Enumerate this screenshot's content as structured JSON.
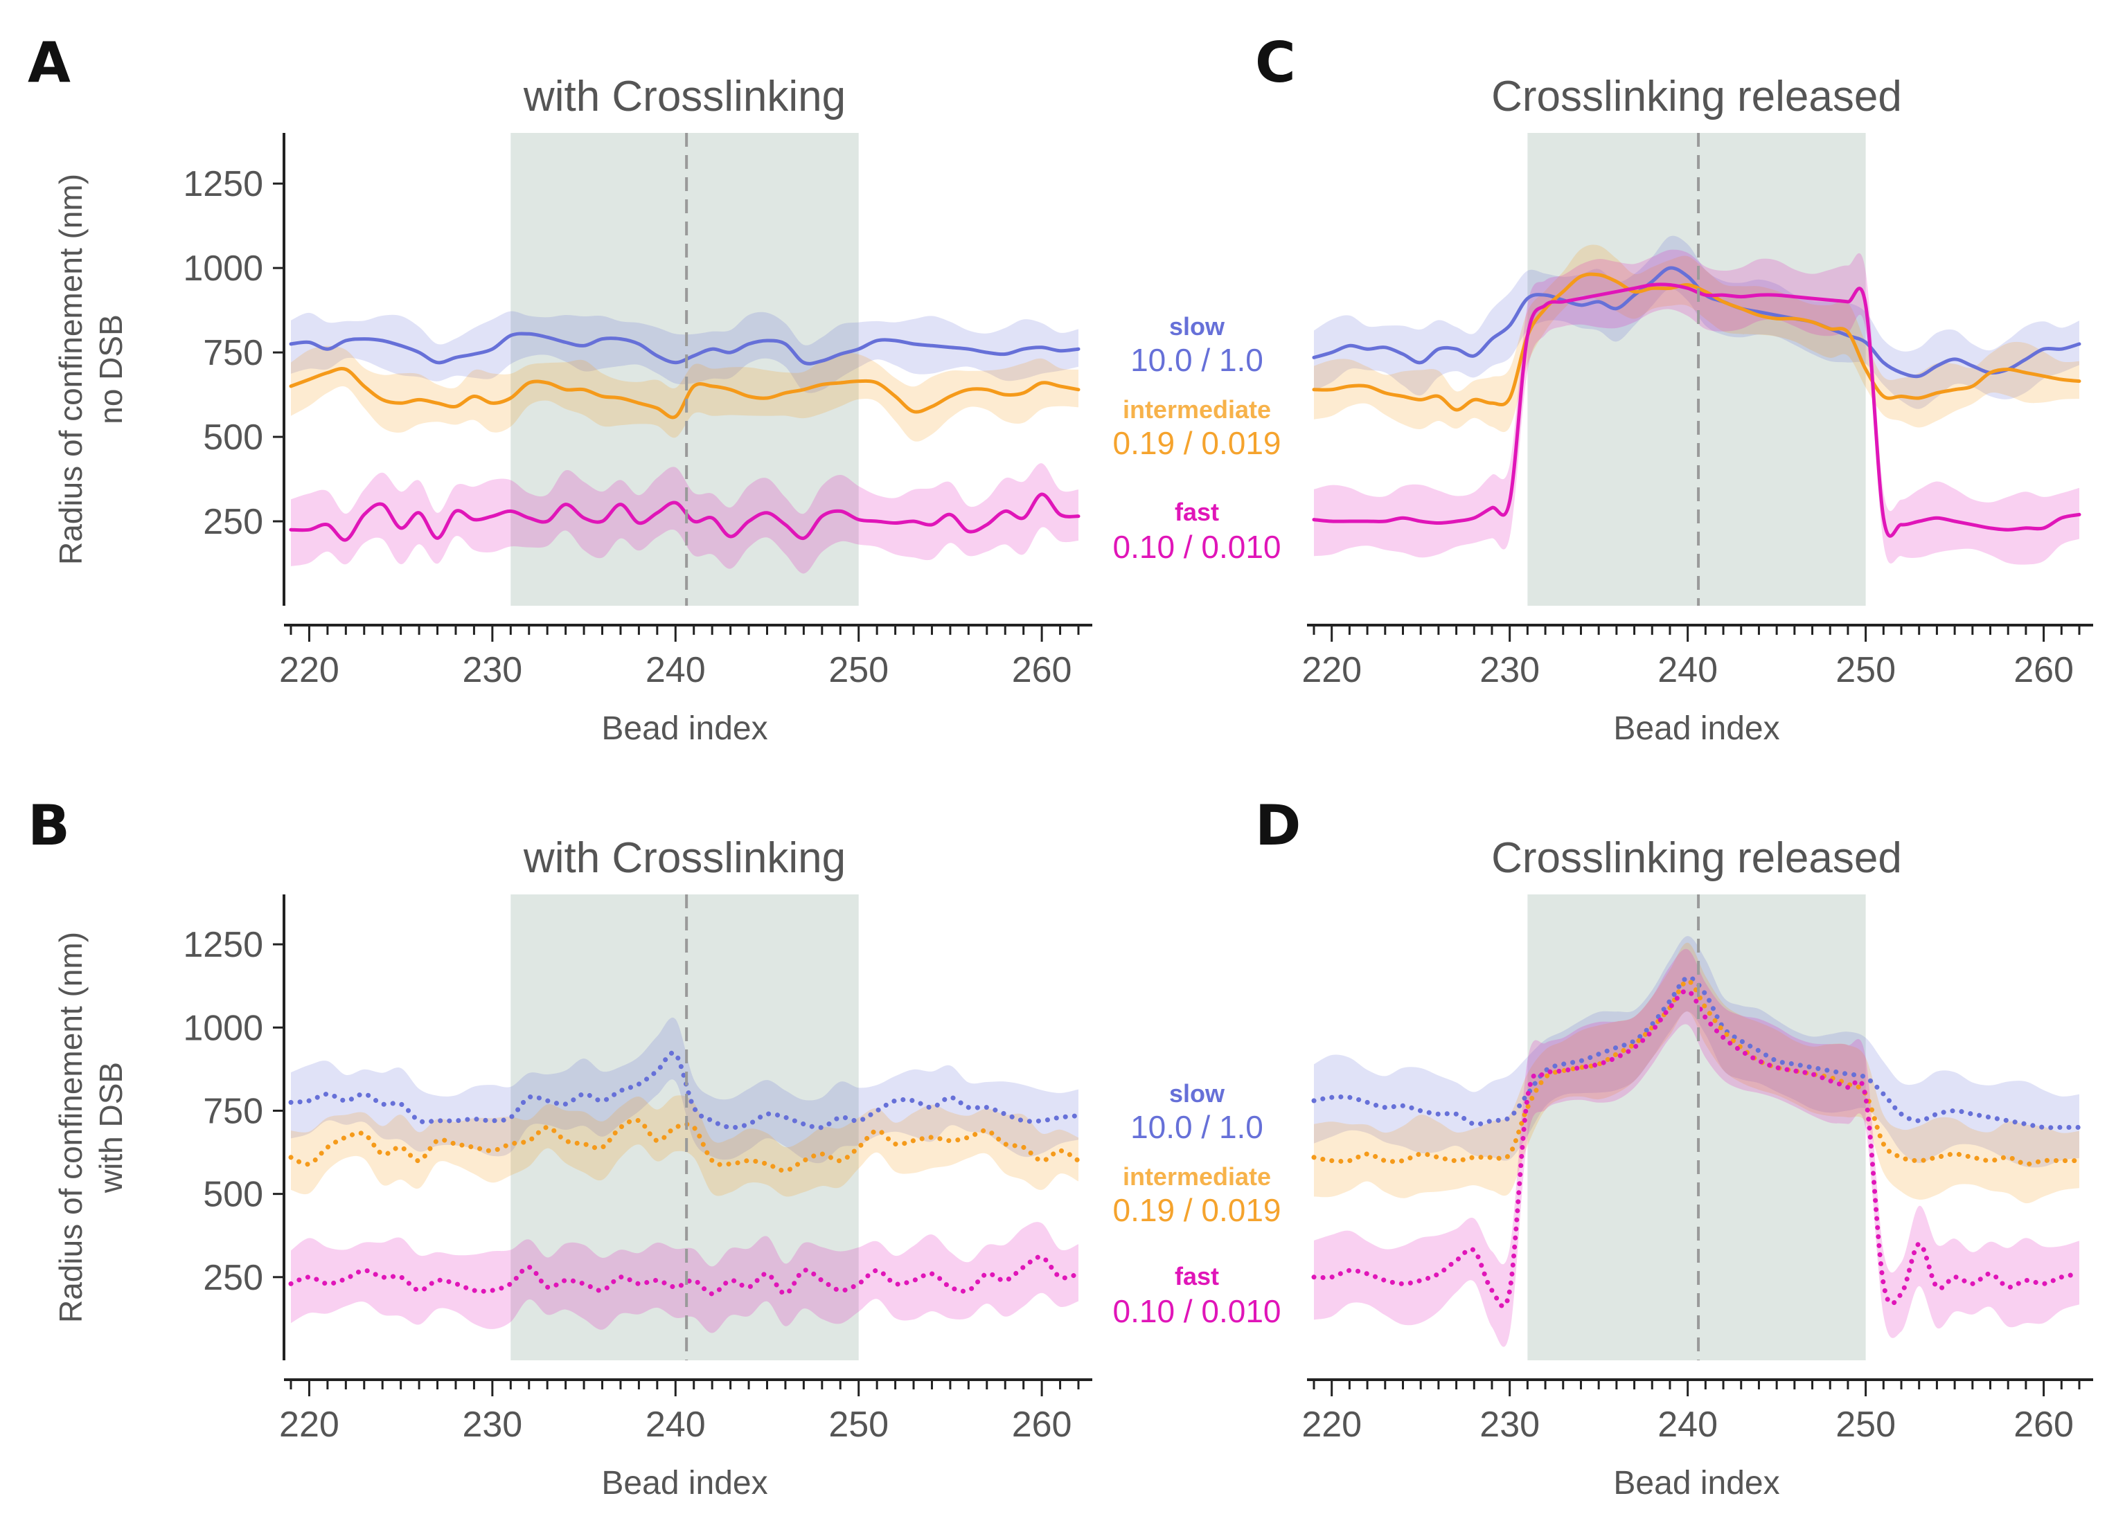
{
  "chart_data": [
    {
      "panel": "A",
      "type": "line",
      "title": "with Crosslinking",
      "ylabel": [
        "Radius of confinement (nm)",
        "no DSB"
      ],
      "xlabel": "Bead index",
      "xlim": [
        219,
        262
      ],
      "ylim": [
        0,
        1400
      ],
      "xticks": [
        220,
        230,
        240,
        250,
        260
      ],
      "yticks": [
        250,
        500,
        750,
        1000,
        1250
      ],
      "region": [
        231,
        250
      ],
      "vline": 240.6,
      "line_style": "solid",
      "x": [
        219,
        220,
        221,
        222,
        223,
        224,
        225,
        226,
        227,
        228,
        229,
        230,
        231,
        232,
        233,
        234,
        235,
        236,
        237,
        238,
        239,
        240,
        241,
        242,
        243,
        244,
        245,
        246,
        247,
        248,
        249,
        250,
        251,
        252,
        253,
        254,
        255,
        256,
        257,
        258,
        259,
        260,
        261,
        262
      ],
      "series": [
        {
          "name": "slow",
          "color": "#6670d8",
          "values": [
            775,
            780,
            760,
            785,
            790,
            785,
            770,
            750,
            720,
            735,
            745,
            760,
            800,
            805,
            795,
            780,
            770,
            790,
            790,
            775,
            740,
            720,
            740,
            760,
            750,
            775,
            785,
            775,
            720,
            725,
            745,
            760,
            785,
            785,
            775,
            770,
            765,
            760,
            750,
            745,
            760,
            765,
            755,
            760
          ],
          "band": 70
        },
        {
          "name": "intermediate",
          "color": "#f59a1a",
          "values": [
            650,
            670,
            690,
            700,
            650,
            610,
            600,
            610,
            600,
            590,
            620,
            600,
            615,
            660,
            660,
            640,
            640,
            620,
            615,
            600,
            585,
            560,
            650,
            650,
            640,
            620,
            615,
            630,
            640,
            655,
            660,
            665,
            660,
            620,
            575,
            590,
            620,
            640,
            640,
            625,
            630,
            660,
            650,
            640
          ],
          "band": 70
        },
        {
          "name": "fast",
          "color": "#e015b8",
          "values": [
            225,
            225,
            240,
            195,
            270,
            300,
            230,
            275,
            200,
            280,
            255,
            265,
            280,
            260,
            250,
            300,
            260,
            250,
            300,
            245,
            275,
            305,
            250,
            260,
            205,
            250,
            275,
            240,
            200,
            265,
            280,
            255,
            250,
            245,
            250,
            240,
            270,
            220,
            240,
            280,
            260,
            330,
            270,
            265
          ],
          "band": 90
        }
      ]
    },
    {
      "panel": "B",
      "type": "line",
      "title": "with Crosslinking",
      "ylabel": [
        "Radius of confinement (nm)",
        "with DSB"
      ],
      "xlabel": "Bead index",
      "xlim": [
        219,
        262
      ],
      "ylim": [
        0,
        1400
      ],
      "xticks": [
        220,
        230,
        240,
        250,
        260
      ],
      "yticks": [
        250,
        500,
        750,
        1000,
        1250
      ],
      "region": [
        231,
        250
      ],
      "vline": 240.6,
      "line_style": "dotted",
      "x": [
        219,
        220,
        221,
        222,
        223,
        224,
        225,
        226,
        227,
        228,
        229,
        230,
        231,
        232,
        233,
        234,
        235,
        236,
        237,
        238,
        239,
        240,
        241,
        242,
        243,
        244,
        245,
        246,
        247,
        248,
        249,
        250,
        251,
        252,
        253,
        254,
        255,
        256,
        257,
        258,
        259,
        260,
        261,
        262
      ],
      "series": [
        {
          "name": "slow",
          "color": "#6670d8",
          "values": [
            775,
            780,
            800,
            780,
            800,
            770,
            770,
            720,
            720,
            720,
            725,
            720,
            730,
            790,
            780,
            770,
            800,
            780,
            810,
            830,
            870,
            920,
            760,
            720,
            700,
            710,
            740,
            730,
            710,
            700,
            730,
            720,
            750,
            780,
            780,
            760,
            790,
            760,
            760,
            740,
            720,
            720,
            730,
            735
          ],
          "band": 90
        },
        {
          "name": "intermediate",
          "color": "#f59a1a",
          "values": [
            610,
            590,
            640,
            670,
            680,
            620,
            640,
            600,
            660,
            650,
            640,
            630,
            650,
            660,
            700,
            660,
            650,
            640,
            700,
            720,
            660,
            700,
            700,
            600,
            590,
            600,
            590,
            570,
            600,
            620,
            600,
            640,
            690,
            650,
            660,
            670,
            660,
            670,
            690,
            650,
            640,
            600,
            630,
            600
          ],
          "band": 80
        },
        {
          "name": "fast",
          "color": "#e015b8",
          "values": [
            230,
            250,
            230,
            245,
            270,
            250,
            250,
            210,
            240,
            230,
            210,
            210,
            230,
            280,
            220,
            240,
            230,
            210,
            250,
            230,
            240,
            220,
            240,
            200,
            240,
            220,
            260,
            200,
            270,
            240,
            210,
            230,
            270,
            230,
            240,
            260,
            220,
            210,
            260,
            240,
            280,
            310,
            250,
            260
          ],
          "band": 100
        }
      ]
    },
    {
      "panel": "C",
      "type": "line",
      "title": "Crosslinking released",
      "ylabel": [],
      "xlabel": "Bead index",
      "xlim": [
        219,
        262
      ],
      "ylim": [
        0,
        1400
      ],
      "xticks": [
        220,
        230,
        240,
        250,
        260
      ],
      "yticks": [],
      "region": [
        231,
        250
      ],
      "vline": 240.6,
      "line_style": "solid",
      "x": [
        219,
        220,
        221,
        222,
        223,
        224,
        225,
        226,
        227,
        228,
        229,
        230,
        231,
        232,
        233,
        234,
        235,
        236,
        237,
        238,
        239,
        240,
        241,
        242,
        243,
        244,
        245,
        246,
        247,
        248,
        249,
        250,
        251,
        252,
        253,
        254,
        255,
        256,
        257,
        258,
        259,
        260,
        261,
        262
      ],
      "series": [
        {
          "name": "slow",
          "color": "#6670d8",
          "values": [
            735,
            750,
            770,
            760,
            765,
            745,
            720,
            760,
            760,
            740,
            790,
            830,
            910,
            920,
            905,
            890,
            900,
            880,
            920,
            960,
            1000,
            975,
            920,
            900,
            880,
            870,
            860,
            850,
            840,
            820,
            800,
            780,
            720,
            690,
            680,
            710,
            730,
            710,
            690,
            700,
            730,
            760,
            760,
            775
          ],
          "band": 80
        },
        {
          "name": "intermediate",
          "color": "#f59a1a",
          "values": [
            640,
            640,
            650,
            650,
            630,
            620,
            610,
            620,
            580,
            610,
            600,
            615,
            800,
            880,
            930,
            975,
            980,
            960,
            930,
            940,
            940,
            950,
            930,
            900,
            880,
            860,
            850,
            850,
            840,
            820,
            810,
            700,
            620,
            620,
            615,
            630,
            640,
            650,
            690,
            700,
            690,
            680,
            670,
            665
          ],
          "band": 70
        },
        {
          "name": "fast",
          "color": "#e015b8",
          "values": [
            255,
            250,
            250,
            250,
            250,
            260,
            250,
            245,
            250,
            260,
            290,
            310,
            800,
            890,
            900,
            910,
            920,
            930,
            940,
            950,
            950,
            940,
            920,
            920,
            915,
            920,
            920,
            915,
            910,
            905,
            900,
            890,
            260,
            240,
            250,
            260,
            250,
            240,
            230,
            225,
            230,
            230,
            260,
            270
          ],
          "band": 90
        }
      ]
    },
    {
      "panel": "D",
      "type": "line",
      "title": "Crosslinking released",
      "ylabel": [],
      "xlabel": "Bead index",
      "xlim": [
        219,
        262
      ],
      "ylim": [
        0,
        1400
      ],
      "xticks": [
        220,
        230,
        240,
        250,
        260
      ],
      "yticks": [],
      "region": [
        231,
        250
      ],
      "vline": 240.6,
      "line_style": "dotted",
      "x": [
        219,
        220,
        221,
        222,
        223,
        224,
        225,
        226,
        227,
        228,
        229,
        230,
        231,
        232,
        233,
        234,
        235,
        236,
        237,
        238,
        239,
        240,
        241,
        242,
        243,
        244,
        245,
        246,
        247,
        248,
        249,
        250,
        251,
        252,
        253,
        254,
        255,
        256,
        257,
        258,
        259,
        260,
        261,
        262
      ],
      "series": [
        {
          "name": "slow",
          "color": "#6670d8",
          "values": [
            780,
            790,
            790,
            775,
            760,
            765,
            750,
            740,
            740,
            710,
            720,
            730,
            800,
            870,
            890,
            900,
            920,
            940,
            960,
            1010,
            1080,
            1150,
            1100,
            1000,
            960,
            930,
            900,
            890,
            880,
            870,
            860,
            850,
            800,
            740,
            720,
            740,
            750,
            740,
            730,
            720,
            710,
            700,
            700,
            700
          ],
          "band": 110
        },
        {
          "name": "intermediate",
          "color": "#f59a1a",
          "values": [
            610,
            600,
            600,
            620,
            600,
            600,
            620,
            610,
            600,
            610,
            610,
            620,
            760,
            850,
            870,
            880,
            890,
            920,
            950,
            1000,
            1060,
            1140,
            1060,
            990,
            940,
            900,
            880,
            870,
            860,
            850,
            830,
            800,
            650,
            610,
            600,
            610,
            620,
            610,
            600,
            610,
            590,
            600,
            600,
            600
          ],
          "band": 100
        },
        {
          "name": "fast",
          "color": "#e015b8",
          "values": [
            250,
            250,
            270,
            260,
            240,
            230,
            240,
            260,
            300,
            330,
            210,
            210,
            790,
            860,
            870,
            880,
            890,
            910,
            940,
            990,
            1060,
            1110,
            1030,
            970,
            930,
            900,
            880,
            870,
            860,
            840,
            820,
            790,
            230,
            200,
            350,
            220,
            250,
            230,
            260,
            220,
            240,
            230,
            250,
            260
          ],
          "band": 110
        }
      ]
    }
  ],
  "legend": [
    {
      "slow": {
        "label": "slow",
        "value": "10.0 / 1.0"
      },
      "intermediate": {
        "label": "intermediate",
        "value": "0.19 / 0.019"
      },
      "fast": {
        "label": "fast",
        "value": "0.10 / 0.010"
      }
    },
    {
      "slow": {
        "label": "slow",
        "value": "10.0 / 1.0"
      },
      "intermediate": {
        "label": "intermediate",
        "value": "0.19 / 0.019"
      },
      "fast": {
        "label": "fast",
        "value": "0.10 / 0.010"
      }
    }
  ],
  "colors": {
    "slow": "#6670d8",
    "intermediate": "#f59a1a",
    "fast": "#e015b8",
    "region": "#dfe7e3",
    "vline": "#9a9a9a",
    "axis": "#222222"
  }
}
